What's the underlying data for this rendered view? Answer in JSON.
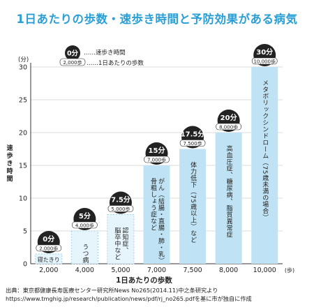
{
  "chart_data": {
    "type": "bar",
    "title": "1日あたりの歩数・速歩き時間と予防効果がある病気",
    "xlabel": "1日あたりの歩数",
    "x_unit": "(歩)",
    "ylabel": "速歩き時間",
    "y_unit": "(分)",
    "ylim": [
      0,
      30
    ],
    "yticks": [
      0,
      5,
      10,
      15,
      20,
      25,
      30
    ],
    "categories": [
      "2,000",
      "4,000",
      "5,000",
      "7,000",
      "7,500",
      "8,000",
      "10,000"
    ],
    "values": [
      0,
      5,
      7.5,
      15,
      17.5,
      20,
      30
    ],
    "badge_minutes": [
      "0分",
      "5分",
      "7.5分",
      "15分",
      "17.5分",
      "20分",
      "30分"
    ],
    "badge_steps": [
      "2,000歩",
      "4,000歩",
      "5,000歩",
      "7,000歩",
      "7,500歩",
      "8,000歩",
      "10,000歩"
    ],
    "diseases": [
      [
        "寝たきり"
      ],
      [
        "うつ病"
      ],
      [
        "認知症、",
        "脳卒中など"
      ],
      [
        "がん（結腸・直腸・肺・乳）",
        "骨粗しょう症など"
      ],
      [
        "体力低下（75歳以上）など"
      ],
      [
        "高血圧症、糖尿病、脂質異常症"
      ],
      [
        "メタボリックシンドローム（75歳未満の場合）"
      ]
    ],
    "legend": {
      "minutes_sample": "0分",
      "steps_sample": "2,000歩",
      "minutes_desc": "……速歩き時間",
      "steps_desc": "……1日あたりの歩数"
    },
    "grid": true,
    "source_lines": [
      "出典：東京都健康長寿医療センター研究所News No265(2014.11)中之条研究より",
      "https://www.tmghig.jp/research/publication/news/pdf/rj_no265.pdfを基に市が独自に作成"
    ],
    "colors": {
      "title": "#2a9fd6",
      "bar_light": "#e6f4fb",
      "bar_dark": "#bfe3f4",
      "badge": "#222222",
      "grid": "#cfcfcf"
    }
  }
}
